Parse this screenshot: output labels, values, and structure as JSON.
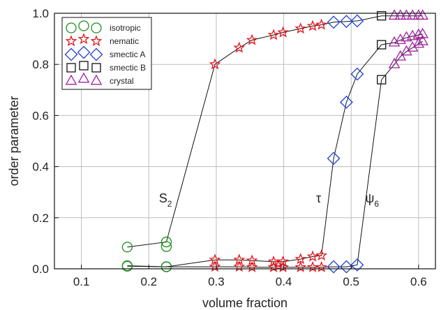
{
  "chart_data": {
    "type": "scatter",
    "xlabel": "volume fraction",
    "ylabel": "order parameter",
    "xlim": [
      0.06,
      0.625
    ],
    "ylim": [
      0,
      1.0
    ],
    "xticks": [
      "0.1",
      "0.2",
      "0.3",
      "0.4",
      "0.5",
      "0.6"
    ],
    "yticks": [
      "0.0",
      "0.2",
      "0.4",
      "0.6",
      "0.8",
      "1.0"
    ],
    "grid": true,
    "legend_position": "top-left",
    "legend": [
      {
        "label": "isotropic",
        "marker": "circle",
        "color": "#1a8f1a"
      },
      {
        "label": "nematic",
        "marker": "star",
        "color": "#e3141b"
      },
      {
        "label": "smectic A",
        "marker": "diamond",
        "color": "#1f3fd1"
      },
      {
        "label": "smectic B",
        "marker": "square",
        "color": "#111111"
      },
      {
        "label": "crystal",
        "marker": "triangle",
        "color": "#a020a0"
      }
    ],
    "annotations": [
      {
        "text": "S",
        "sub": "2",
        "x": 0.215,
        "y": 0.26
      },
      {
        "text": "τ",
        "sub": "",
        "x": 0.448,
        "y": 0.26
      },
      {
        "text": "ψ",
        "sub": "6",
        "x": 0.521,
        "y": 0.26
      }
    ],
    "series": [
      {
        "name": "S2",
        "points": [
          {
            "x": 0.168,
            "y": 0.085,
            "phase": "isotropic"
          },
          {
            "x": 0.226,
            "y": 0.105,
            "phase": "isotropic"
          },
          {
            "x": 0.298,
            "y": 0.8,
            "phase": "nematic"
          },
          {
            "x": 0.334,
            "y": 0.865,
            "phase": "nematic"
          },
          {
            "x": 0.353,
            "y": 0.895,
            "phase": "nematic"
          },
          {
            "x": 0.385,
            "y": 0.915,
            "phase": "nematic"
          },
          {
            "x": 0.399,
            "y": 0.925,
            "phase": "nematic"
          },
          {
            "x": 0.425,
            "y": 0.94,
            "phase": "nematic"
          },
          {
            "x": 0.443,
            "y": 0.95,
            "phase": "nematic"
          },
          {
            "x": 0.456,
            "y": 0.955,
            "phase": "nematic"
          },
          {
            "x": 0.474,
            "y": 0.965,
            "phase": "smectic A"
          },
          {
            "x": 0.493,
            "y": 0.968,
            "phase": "smectic A"
          },
          {
            "x": 0.509,
            "y": 0.97,
            "phase": "smectic A"
          },
          {
            "x": 0.545,
            "y": 0.99,
            "phase": "smectic B"
          },
          {
            "x": 0.564,
            "y": 0.99,
            "phase": "crystal"
          },
          {
            "x": 0.573,
            "y": 0.99,
            "phase": "crystal"
          },
          {
            "x": 0.582,
            "y": 0.99,
            "phase": "crystal"
          },
          {
            "x": 0.591,
            "y": 0.99,
            "phase": "crystal"
          },
          {
            "x": 0.6,
            "y": 0.99,
            "phase": "crystal"
          },
          {
            "x": 0.606,
            "y": 0.99,
            "phase": "crystal"
          }
        ],
        "extra_points": [
          {
            "x": 0.226,
            "y": 0.087,
            "phase": "isotropic"
          }
        ]
      },
      {
        "name": "τ",
        "points": [
          {
            "x": 0.168,
            "y": 0.012,
            "phase": "isotropic"
          },
          {
            "x": 0.226,
            "y": 0.008,
            "phase": "isotropic"
          },
          {
            "x": 0.298,
            "y": 0.035,
            "phase": "nematic"
          },
          {
            "x": 0.334,
            "y": 0.035,
            "phase": "nematic"
          },
          {
            "x": 0.353,
            "y": 0.032,
            "phase": "nematic"
          },
          {
            "x": 0.385,
            "y": 0.028,
            "phase": "nematic"
          },
          {
            "x": 0.399,
            "y": 0.028,
            "phase": "nematic"
          },
          {
            "x": 0.425,
            "y": 0.038,
            "phase": "nematic"
          },
          {
            "x": 0.443,
            "y": 0.048,
            "phase": "nematic"
          },
          {
            "x": 0.456,
            "y": 0.052,
            "phase": "nematic"
          },
          {
            "x": 0.474,
            "y": 0.432,
            "phase": "smectic A"
          },
          {
            "x": 0.493,
            "y": 0.652,
            "phase": "smectic A"
          },
          {
            "x": 0.509,
            "y": 0.762,
            "phase": "smectic A"
          },
          {
            "x": 0.545,
            "y": 0.877,
            "phase": "smectic B"
          },
          {
            "x": 0.564,
            "y": 0.885,
            "phase": "crystal"
          },
          {
            "x": 0.573,
            "y": 0.895,
            "phase": "crystal"
          },
          {
            "x": 0.582,
            "y": 0.905,
            "phase": "crystal"
          },
          {
            "x": 0.591,
            "y": 0.91,
            "phase": "crystal"
          },
          {
            "x": 0.6,
            "y": 0.915,
            "phase": "crystal"
          },
          {
            "x": 0.606,
            "y": 0.918,
            "phase": "crystal"
          }
        ]
      },
      {
        "name": "ψ6",
        "points": [
          {
            "x": 0.168,
            "y": 0.01,
            "phase": "isotropic"
          },
          {
            "x": 0.226,
            "y": 0.008,
            "phase": "isotropic"
          },
          {
            "x": 0.298,
            "y": 0.008,
            "phase": "nematic"
          },
          {
            "x": 0.334,
            "y": 0.008,
            "phase": "nematic"
          },
          {
            "x": 0.353,
            "y": 0.006,
            "phase": "nematic"
          },
          {
            "x": 0.385,
            "y": 0.006,
            "phase": "nematic"
          },
          {
            "x": 0.392,
            "y": 0.012,
            "phase": "nematic"
          },
          {
            "x": 0.399,
            "y": 0.006,
            "phase": "nematic"
          },
          {
            "x": 0.425,
            "y": 0.006,
            "phase": "nematic"
          },
          {
            "x": 0.443,
            "y": 0.006,
            "phase": "nematic"
          },
          {
            "x": 0.456,
            "y": 0.006,
            "phase": "nematic"
          },
          {
            "x": 0.474,
            "y": 0.008,
            "phase": "smectic A"
          },
          {
            "x": 0.493,
            "y": 0.008,
            "phase": "smectic A"
          },
          {
            "x": 0.509,
            "y": 0.015,
            "phase": "smectic A"
          },
          {
            "x": 0.545,
            "y": 0.74,
            "phase": "smectic B"
          },
          {
            "x": 0.564,
            "y": 0.8,
            "phase": "crystal"
          },
          {
            "x": 0.573,
            "y": 0.83,
            "phase": "crystal"
          },
          {
            "x": 0.582,
            "y": 0.85,
            "phase": "crystal"
          },
          {
            "x": 0.591,
            "y": 0.865,
            "phase": "crystal"
          },
          {
            "x": 0.6,
            "y": 0.88,
            "phase": "crystal"
          },
          {
            "x": 0.606,
            "y": 0.89,
            "phase": "crystal"
          }
        ]
      }
    ]
  }
}
